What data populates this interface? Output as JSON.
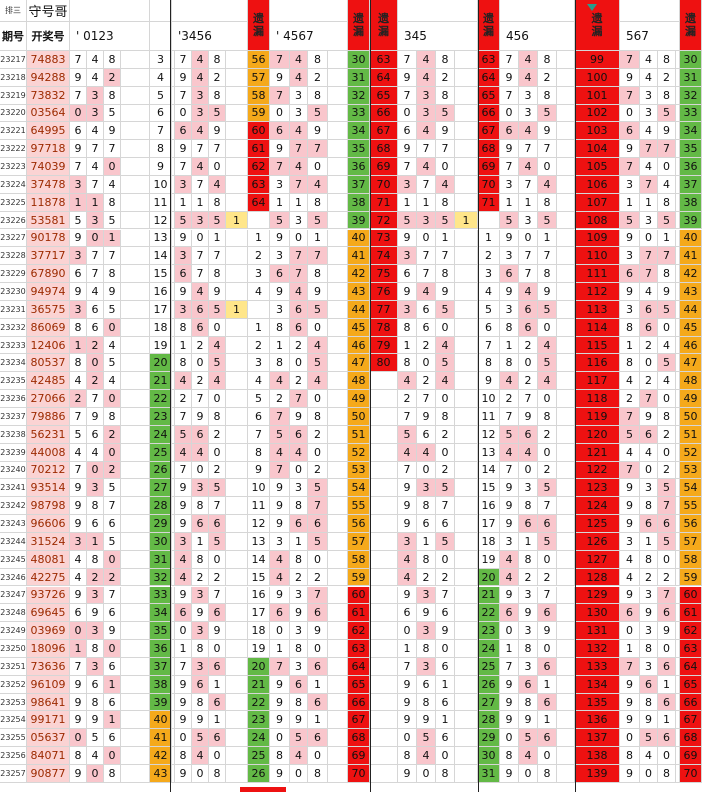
{
  "header": {
    "sheet": "排三",
    "title": "守号哥",
    "columns": [
      "期号",
      "开奖号",
      "' 0123",
      "'3456",
      "遗漏",
      "' 4567",
      "遗漏",
      "遗漏",
      "345",
      "遗漏",
      "456",
      "遗漏",
      "567",
      "遗漏"
    ]
  },
  "table": {
    "rows": [
      [
        23217,
        "74883",
        3,
        null,
        56,
        30,
        63,
        null,
        63,
        99,
        30
      ],
      [
        23218,
        "94288",
        4,
        null,
        57,
        31,
        64,
        null,
        64,
        100,
        31
      ],
      [
        23219,
        "73832",
        5,
        null,
        58,
        32,
        65,
        null,
        65,
        101,
        32
      ],
      [
        23220,
        "03564",
        6,
        null,
        59,
        33,
        66,
        null,
        66,
        102,
        33
      ],
      [
        23221,
        "64995",
        7,
        null,
        60,
        34,
        67,
        null,
        67,
        103,
        34
      ],
      [
        23222,
        "97718",
        8,
        null,
        61,
        35,
        68,
        null,
        68,
        104,
        35
      ],
      [
        23223,
        "74039",
        9,
        null,
        62,
        36,
        69,
        null,
        69,
        105,
        36
      ],
      [
        23224,
        "37478",
        10,
        null,
        63,
        37,
        70,
        null,
        70,
        106,
        37
      ],
      [
        23225,
        "11878",
        11,
        null,
        64,
        38,
        71,
        null,
        71,
        107,
        38
      ],
      [
        23226,
        "53581",
        12,
        1,
        null,
        39,
        72,
        1,
        null,
        108,
        39
      ],
      [
        23227,
        "90178",
        13,
        null,
        1,
        40,
        73,
        null,
        1,
        109,
        40
      ],
      [
        23228,
        "37717",
        14,
        null,
        2,
        41,
        74,
        null,
        2,
        110,
        41
      ],
      [
        23229,
        "67890",
        15,
        null,
        3,
        42,
        75,
        null,
        3,
        111,
        42
      ],
      [
        23230,
        "94974",
        16,
        null,
        4,
        43,
        76,
        null,
        4,
        112,
        43
      ],
      [
        23231,
        "36575",
        17,
        1,
        null,
        44,
        77,
        null,
        5,
        113,
        44
      ],
      [
        23232,
        "86069",
        18,
        null,
        1,
        45,
        78,
        null,
        6,
        114,
        45
      ],
      [
        23233,
        "12406",
        19,
        null,
        2,
        46,
        79,
        null,
        7,
        115,
        46
      ],
      [
        23234,
        "80537",
        20,
        null,
        3,
        47,
        80,
        null,
        8,
        116,
        47
      ],
      [
        23235,
        "42485",
        21,
        null,
        4,
        48,
        null,
        null,
        9,
        117,
        48
      ],
      [
        23236,
        "27066",
        22,
        null,
        5,
        49,
        null,
        null,
        10,
        118,
        49
      ],
      [
        23237,
        "79886",
        23,
        null,
        6,
        50,
        null,
        null,
        11,
        119,
        50
      ],
      [
        23238,
        "56231",
        24,
        null,
        7,
        51,
        null,
        null,
        12,
        120,
        51
      ],
      [
        23239,
        "44008",
        25,
        null,
        8,
        52,
        null,
        null,
        13,
        121,
        52
      ],
      [
        23240,
        "70212",
        26,
        null,
        9,
        53,
        null,
        null,
        14,
        122,
        53
      ],
      [
        23241,
        "93514",
        27,
        null,
        10,
        54,
        null,
        null,
        15,
        123,
        54
      ],
      [
        23242,
        "98798",
        28,
        null,
        11,
        55,
        null,
        null,
        16,
        124,
        55
      ],
      [
        23243,
        "96606",
        29,
        null,
        12,
        56,
        null,
        null,
        17,
        125,
        56
      ],
      [
        23244,
        "31524",
        30,
        null,
        13,
        57,
        null,
        null,
        18,
        126,
        57
      ],
      [
        23245,
        "48081",
        31,
        null,
        14,
        58,
        null,
        null,
        19,
        127,
        58
      ],
      [
        23246,
        "42275",
        32,
        null,
        15,
        59,
        null,
        null,
        20,
        128,
        59
      ],
      [
        23247,
        "93726",
        33,
        null,
        16,
        60,
        null,
        null,
        21,
        129,
        60
      ],
      [
        23248,
        "69645",
        34,
        null,
        17,
        61,
        null,
        null,
        22,
        130,
        61
      ],
      [
        23249,
        "03969",
        35,
        null,
        18,
        62,
        null,
        null,
        23,
        131,
        62
      ],
      [
        23250,
        "18096",
        36,
        null,
        19,
        63,
        null,
        null,
        24,
        132,
        63
      ],
      [
        23251,
        "73636",
        37,
        null,
        20,
        64,
        null,
        null,
        25,
        133,
        64
      ],
      [
        23252,
        "96109",
        38,
        null,
        21,
        65,
        null,
        null,
        26,
        134,
        65
      ],
      [
        23253,
        "98641",
        39,
        null,
        22,
        66,
        null,
        null,
        27,
        135,
        66
      ],
      [
        23254,
        "99171",
        40,
        null,
        23,
        67,
        null,
        null,
        28,
        136,
        67
      ],
      [
        23255,
        "05637",
        41,
        null,
        24,
        68,
        null,
        null,
        29,
        137,
        68
      ],
      [
        23256,
        "84071",
        42,
        null,
        25,
        69,
        null,
        null,
        30,
        138,
        69
      ],
      [
        23257,
        "90877",
        43,
        null,
        26,
        70,
        null,
        null,
        31,
        139,
        70
      ]
    ]
  }
}
